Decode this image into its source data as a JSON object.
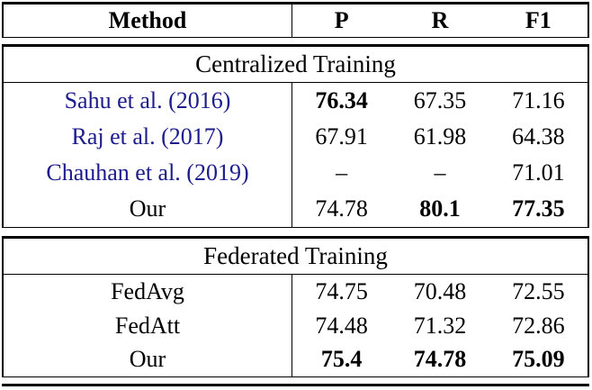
{
  "table": {
    "columns": {
      "method": "Method",
      "p": "P",
      "r": "R",
      "f1": "F1"
    },
    "sections": [
      {
        "title": "Centralized Training",
        "rows": [
          {
            "method": "Sahu et al. (2016)",
            "p": "76.34",
            "r": "67.35",
            "f1": "71.16"
          },
          {
            "method": "Raj et al. (2017)",
            "p": "67.91",
            "r": "61.98",
            "f1": "64.38"
          },
          {
            "method": "Chauhan et al. (2019)",
            "p": "–",
            "r": "–",
            "f1": "71.01"
          },
          {
            "method": "Our",
            "p": "74.78",
            "r": "80.1",
            "f1": "77.35"
          }
        ]
      },
      {
        "title": "Federated Training",
        "rows": [
          {
            "method": "FedAvg",
            "p": "74.75",
            "r": "70.48",
            "f1": "72.55"
          },
          {
            "method": "FedAtt",
            "p": "74.48",
            "r": "71.32",
            "f1": "72.86"
          },
          {
            "method": "Our",
            "p": "75.4",
            "r": "74.78",
            "f1": "75.09"
          }
        ]
      }
    ],
    "colors": {
      "citation": "#1c1c8c",
      "border": "#000000",
      "text": "#000000"
    }
  }
}
